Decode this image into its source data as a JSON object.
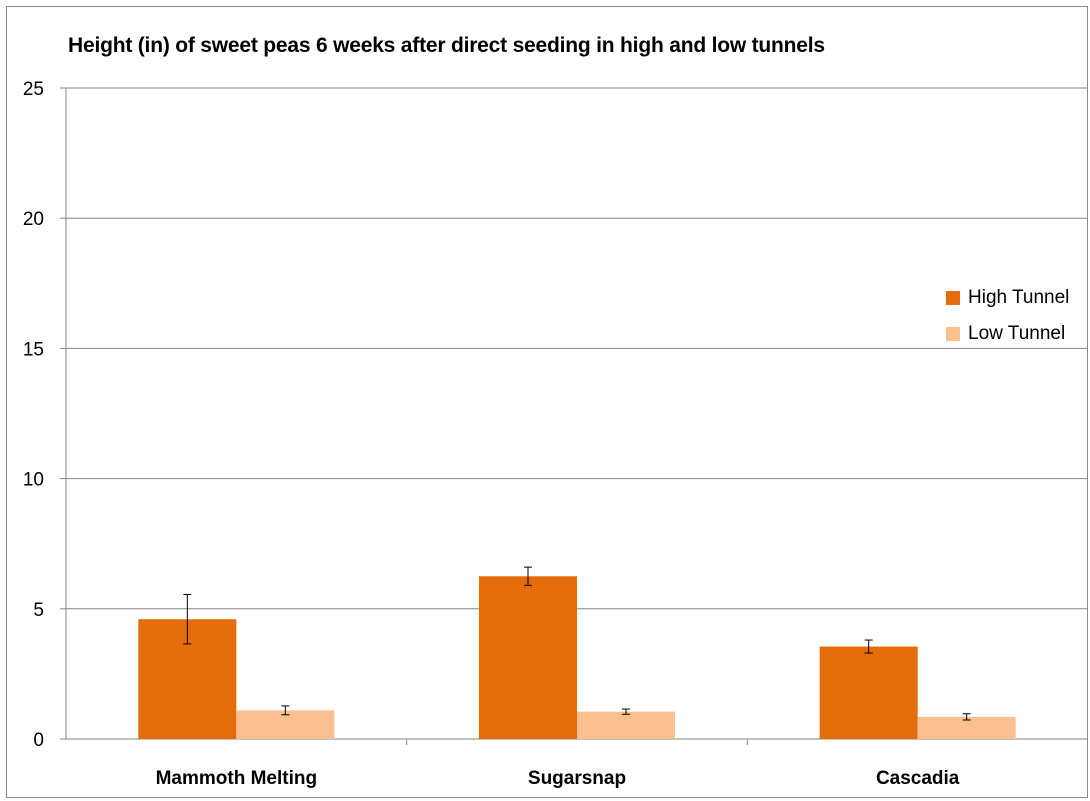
{
  "chart_data": {
    "type": "bar",
    "title": "Height (in) of sweet peas 6 weeks after  direct seeding in high and low tunnels",
    "xlabel": "",
    "ylabel": "",
    "ylim": [
      0,
      25
    ],
    "yticks": [
      "0",
      "5",
      "10",
      "15",
      "20",
      "25"
    ],
    "grid": true,
    "legend_position": "right",
    "categories": [
      "Mammoth Melting",
      "Sugarsnap",
      "Cascadia"
    ],
    "series": [
      {
        "name": "High Tunnel",
        "color": "#E46C0A",
        "values": [
          4.6,
          6.25,
          3.55
        ],
        "error": [
          0.95,
          0.35,
          0.25
        ]
      },
      {
        "name": "Low Tunnel",
        "color": "#FAC090",
        "values": [
          1.1,
          1.05,
          0.85
        ],
        "error": [
          0.17,
          0.1,
          0.12
        ]
      }
    ]
  }
}
